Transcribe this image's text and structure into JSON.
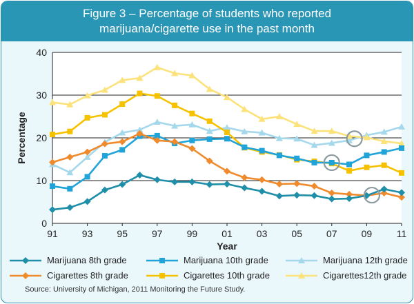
{
  "title_line1": "Figure 3 – Percentage of students who reported",
  "title_line2": "marijuana/cigarette use in the past month",
  "source": "Source: University of Michigan, 2011 Monitoring the Future Study.",
  "colors": {
    "title_bg": "#2a96b5",
    "panel_bg": "#eaf7fb",
    "plot_bg": "#ffffff",
    "grid": "#222222",
    "circle": "#8a9a9e"
  },
  "chart_data": {
    "type": "line",
    "title": "Percentage of students who reported marijuana/cigarette use in the past month",
    "xlabel": "Year",
    "ylabel": "Percentage",
    "ylim": [
      0,
      40
    ],
    "yticks": [
      0,
      10,
      20,
      30,
      40
    ],
    "xlim": [
      1991,
      2011
    ],
    "x": [
      1991,
      1992,
      1993,
      1994,
      1995,
      1996,
      1997,
      1998,
      1999,
      2000,
      2001,
      2002,
      2003,
      2004,
      2005,
      2006,
      2007,
      2008,
      2009,
      2010,
      2011
    ],
    "xticks": [
      {
        "year": 1991,
        "label": "91"
      },
      {
        "year": 1993,
        "label": "93"
      },
      {
        "year": 1995,
        "label": "95"
      },
      {
        "year": 1997,
        "label": "97"
      },
      {
        "year": 1999,
        "label": "99"
      },
      {
        "year": 2001,
        "label": "01"
      },
      {
        "year": 2003,
        "label": "03"
      },
      {
        "year": 2005,
        "label": "05"
      },
      {
        "year": 2007,
        "label": "07"
      },
      {
        "year": 2009,
        "label": "09"
      },
      {
        "year": 2011,
        "label": "11"
      }
    ],
    "grid": "horizontal",
    "legend_position": "bottom",
    "series": [
      {
        "name": "Marijuana 8th grade",
        "color": "#1f8fa9",
        "marker": "diamond",
        "values": [
          3.2,
          3.7,
          5.1,
          7.8,
          9.1,
          11.3,
          10.2,
          9.7,
          9.7,
          9.1,
          9.2,
          8.3,
          7.5,
          6.4,
          6.6,
          6.5,
          5.7,
          5.8,
          6.5,
          8.0,
          7.2
        ]
      },
      {
        "name": "Marijuana 10th grade",
        "color": "#1fa3d8",
        "marker": "square",
        "values": [
          8.7,
          8.1,
          10.9,
          15.8,
          17.2,
          20.4,
          20.5,
          18.7,
          19.4,
          19.7,
          19.8,
          17.8,
          17.0,
          15.9,
          15.2,
          14.2,
          14.2,
          13.8,
          15.9,
          16.7,
          17.6
        ]
      },
      {
        "name": "Marijuana 12th grade",
        "color": "#a6d8ec",
        "marker": "triangle",
        "values": [
          13.8,
          11.9,
          15.5,
          19.0,
          21.2,
          21.9,
          23.7,
          22.8,
          23.1,
          21.6,
          22.4,
          21.5,
          21.2,
          19.9,
          19.8,
          18.3,
          18.8,
          19.4,
          20.6,
          21.4,
          22.6
        ]
      },
      {
        "name": "Cigarettes 8th grade",
        "color": "#ef8a2d",
        "marker": "diamond",
        "values": [
          14.3,
          15.5,
          16.7,
          18.6,
          19.1,
          21.0,
          19.4,
          19.1,
          17.5,
          14.6,
          12.2,
          10.7,
          10.2,
          9.2,
          9.3,
          8.7,
          7.1,
          6.8,
          6.5,
          7.1,
          6.1
        ]
      },
      {
        "name": "Cigarettes 10th grade",
        "color": "#f6c200",
        "marker": "square",
        "values": [
          20.8,
          21.5,
          24.7,
          25.4,
          27.9,
          30.4,
          29.8,
          27.6,
          25.7,
          23.9,
          21.3,
          17.7,
          16.7,
          16.0,
          14.9,
          14.5,
          14.0,
          12.3,
          13.1,
          13.6,
          11.8
        ]
      },
      {
        "name": "Cigarettes12th grade",
        "color": "#fbe27a",
        "marker": "triangle",
        "values": [
          28.3,
          27.8,
          29.9,
          31.2,
          33.5,
          34.0,
          36.5,
          35.1,
          34.6,
          31.4,
          29.5,
          26.7,
          24.4,
          25.0,
          23.2,
          21.6,
          21.6,
          20.4,
          20.1,
          19.2,
          18.7
        ]
      }
    ],
    "annotations": [
      {
        "type": "circle",
        "x": 2008.3,
        "y": 19.8
      },
      {
        "type": "circle",
        "x": 2007,
        "y": 14.2
      },
      {
        "type": "circle",
        "x": 2009.3,
        "y": 6.6
      }
    ]
  }
}
